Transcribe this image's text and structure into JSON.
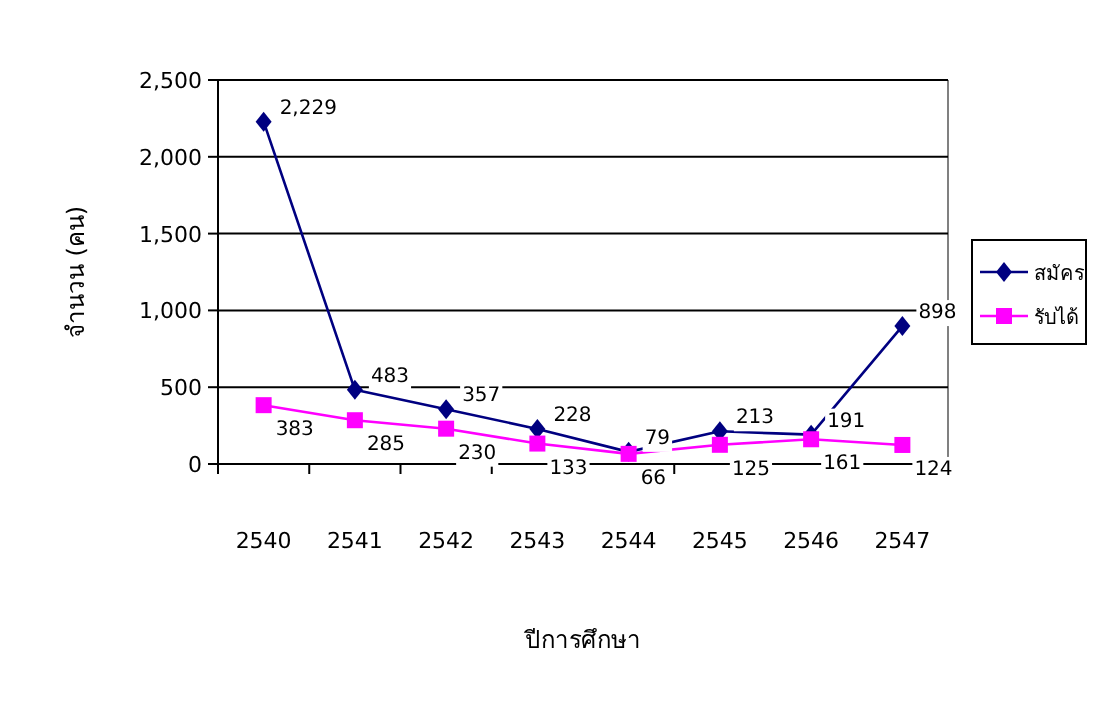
{
  "chart_data": {
    "type": "line",
    "xlabel": "ปีการศึกษา",
    "ylabel": "จำนวน (คน)",
    "categories": [
      "2540",
      "2541",
      "2542",
      "2543",
      "2544",
      "2545",
      "2546",
      "2547"
    ],
    "series": [
      {
        "name": "สมัคร",
        "color": "#000080",
        "marker": "diamond",
        "values": [
          2229,
          483,
          357,
          228,
          79,
          213,
          191,
          898
        ],
        "value_labels": [
          "2,229",
          "483",
          "357",
          "228",
          "79",
          "213",
          "191",
          "898"
        ]
      },
      {
        "name": "รับได้",
        "color": "#ff00ff",
        "marker": "square",
        "values": [
          383,
          285,
          230,
          133,
          66,
          125,
          161,
          124
        ],
        "value_labels": [
          "383",
          "285",
          "230",
          "133",
          "66",
          "125",
          "161",
          "124"
        ]
      }
    ],
    "ylim": [
      0,
      2500
    ],
    "yticks": [
      0,
      {
        "value": 500,
        "label": "500"
      },
      {
        "value": 1000,
        "label": "1,000"
      },
      {
        "value": 1500,
        "label": "1,500"
      },
      {
        "value": 2000,
        "label": "2,000"
      },
      {
        "value": 2500,
        "label": "2,500"
      }
    ],
    "grid": "y",
    "legend": "right",
    "line_style": "solid"
  }
}
